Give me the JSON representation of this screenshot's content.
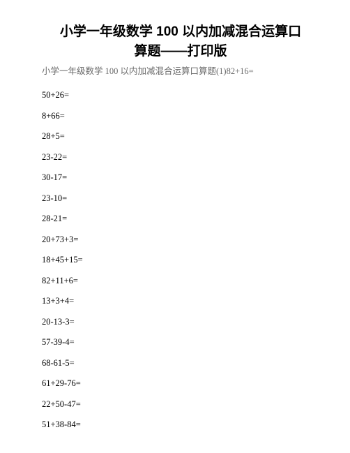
{
  "title_line1": "小学一年级数学 100 以内加减混合运算口",
  "title_line2": "算题――打印版",
  "subtitle": "小学一年级数学 100 以内加减混合运算口算题(1)82+16=",
  "problems": [
    "50+26=",
    "8+66=",
    "28+5=",
    "23-22=",
    "30-17=",
    "23-10=",
    "28-21=",
    "20+73+3=",
    "18+45+15=",
    "82+11+6=",
    "13+3+4=",
    "20-13-3=",
    "57-39-4=",
    "68-61-5=",
    "61+29-76=",
    "22+50-47=",
    "51+38-84="
  ]
}
